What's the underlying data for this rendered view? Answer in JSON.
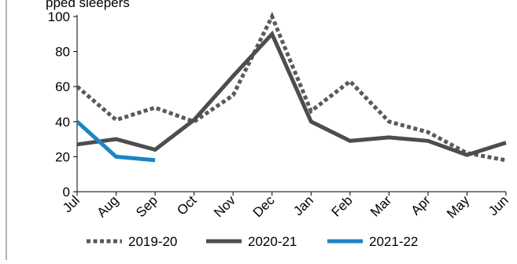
{
  "header_fragment": "pped sleepers",
  "chart_data": {
    "type": "line",
    "categories": [
      "Jul",
      "Aug",
      "Sep",
      "Oct",
      "Nov",
      "Dec",
      "Jan",
      "Feb",
      "Mar",
      "Apr",
      "May",
      "Jun"
    ],
    "ylim": [
      0,
      100
    ],
    "yticks": [
      0,
      20,
      40,
      60,
      80,
      100
    ],
    "grid": false,
    "legend_position": "bottom",
    "series": [
      {
        "name": "2019-20",
        "color": "#595959",
        "style": "dotted",
        "values": [
          60,
          41,
          48,
          40,
          55,
          100,
          46,
          63,
          40,
          34,
          22,
          18
        ]
      },
      {
        "name": "2020-21",
        "color": "#4d4d4f",
        "style": "solid",
        "values": [
          27,
          30,
          24,
          41,
          66,
          90,
          40,
          29,
          31,
          29,
          21,
          28
        ]
      },
      {
        "name": "2021-22",
        "color": "#1b86c4",
        "style": "solid",
        "values": [
          40,
          20,
          18,
          null,
          null,
          null,
          null,
          null,
          null,
          null,
          null,
          null
        ]
      }
    ]
  }
}
